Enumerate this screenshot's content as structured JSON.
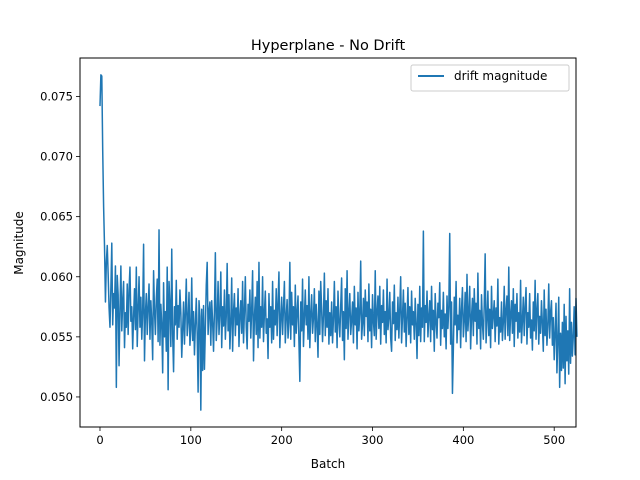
{
  "chart_data": {
    "type": "line",
    "title": "Hyperplane - No Drift",
    "xlabel": "Batch",
    "ylabel": "Magnitude",
    "xlim": [
      -22,
      524
    ],
    "ylim": [
      0.0475,
      0.0782
    ],
    "xticks": [
      0,
      100,
      200,
      300,
      400,
      500
    ],
    "yticks": [
      0.05,
      0.055,
      0.06,
      0.065,
      0.07,
      0.075
    ],
    "ytick_labels": [
      "0.050",
      "0.055",
      "0.060",
      "0.065",
      "0.070",
      "0.075"
    ],
    "grid": false,
    "legend_position": "top-right",
    "series": [
      {
        "name": "drift magnitude",
        "color": "#1f77b4",
        "x_start": 0,
        "x_step": 1,
        "values": [
          0.0742,
          0.0768,
          0.0767,
          0.0705,
          0.0658,
          0.0625,
          0.0579,
          0.0612,
          0.0626,
          0.0602,
          0.0574,
          0.0558,
          0.0591,
          0.0628,
          0.056,
          0.0586,
          0.0574,
          0.0609,
          0.0508,
          0.0601,
          0.0585,
          0.0526,
          0.0573,
          0.0609,
          0.0555,
          0.058,
          0.0596,
          0.0541,
          0.057,
          0.0558,
          0.0594,
          0.0552,
          0.0589,
          0.0608,
          0.0563,
          0.0575,
          0.054,
          0.0567,
          0.059,
          0.0556,
          0.0608,
          0.0542,
          0.0573,
          0.06,
          0.0558,
          0.0583,
          0.0548,
          0.0571,
          0.0627,
          0.053,
          0.0569,
          0.0586,
          0.0552,
          0.0575,
          0.0594,
          0.0548,
          0.058,
          0.0562,
          0.0531,
          0.0605,
          0.0572,
          0.0552,
          0.0582,
          0.0598,
          0.0546,
          0.0639,
          0.0543,
          0.0577,
          0.056,
          0.052,
          0.0595,
          0.055,
          0.0571,
          0.0538,
          0.0608,
          0.0506,
          0.0596,
          0.0577,
          0.0542,
          0.0623,
          0.0552,
          0.0521,
          0.0575,
          0.056,
          0.0597,
          0.0548,
          0.0576,
          0.0558,
          0.0589,
          0.057,
          0.0533,
          0.0556,
          0.0579,
          0.0544,
          0.057,
          0.0598,
          0.0551,
          0.0563,
          0.0587,
          0.0543,
          0.0556,
          0.0599,
          0.0547,
          0.0571,
          0.0535,
          0.056,
          0.0582,
          0.0553,
          0.0504,
          0.058,
          0.0567,
          0.0489,
          0.0573,
          0.0522,
          0.0576,
          0.0523,
          0.0557,
          0.0593,
          0.0612,
          0.0552,
          0.0571,
          0.0579,
          0.0543,
          0.058,
          0.0562,
          0.0538,
          0.0572,
          0.062,
          0.0547,
          0.0564,
          0.0596,
          0.0552,
          0.0569,
          0.0604,
          0.0541,
          0.0575,
          0.0559,
          0.0589,
          0.0548,
          0.0567,
          0.0611,
          0.0555,
          0.0585,
          0.054,
          0.0562,
          0.0599,
          0.0538,
          0.0571,
          0.0586,
          0.0551,
          0.0574,
          0.056,
          0.059,
          0.0542,
          0.0567,
          0.058,
          0.0553,
          0.0596,
          0.0545,
          0.0571,
          0.06,
          0.0558,
          0.054,
          0.0577,
          0.0563,
          0.0589,
          0.0549,
          0.0573,
          0.0605,
          0.053,
          0.0566,
          0.0583,
          0.0552,
          0.0596,
          0.0541,
          0.0612,
          0.0549,
          0.0575,
          0.0558,
          0.06,
          0.0546,
          0.057,
          0.0588,
          0.0553,
          0.0565,
          0.0532,
          0.0586,
          0.0558,
          0.0575,
          0.0545,
          0.0596,
          0.0548,
          0.0572,
          0.056,
          0.059,
          0.0551,
          0.0578,
          0.0604,
          0.0541,
          0.0565,
          0.0583,
          0.0552,
          0.0574,
          0.0596,
          0.0545,
          0.0567,
          0.0581,
          0.0549,
          0.0562,
          0.0612,
          0.0548,
          0.0587,
          0.056,
          0.0575,
          0.0542,
          0.0593,
          0.0553,
          0.057,
          0.0584,
          0.0546,
          0.0513,
          0.0579,
          0.0555,
          0.0598,
          0.0542,
          0.0566,
          0.0589,
          0.056,
          0.0576,
          0.0548,
          0.06,
          0.0541,
          0.0569,
          0.0585,
          0.0553,
          0.0566,
          0.059,
          0.0546,
          0.0577,
          0.056,
          0.0533,
          0.0588,
          0.0552,
          0.0596,
          0.0573,
          0.0546,
          0.0568,
          0.0603,
          0.0551,
          0.058,
          0.0558,
          0.059,
          0.0544,
          0.057,
          0.0551,
          0.0579,
          0.0545,
          0.0565,
          0.0596,
          0.0554,
          0.0575,
          0.0541,
          0.0588,
          0.0563,
          0.055,
          0.0576,
          0.0599,
          0.0547,
          0.0571,
          0.0531,
          0.059,
          0.0557,
          0.0605,
          0.0548,
          0.057,
          0.0586,
          0.0552,
          0.0564,
          0.0579,
          0.0545,
          0.0592,
          0.056,
          0.0574,
          0.054,
          0.0587,
          0.0555,
          0.0569,
          0.0613,
          0.0548,
          0.0561,
          0.0582,
          0.0551,
          0.0589,
          0.0567,
          0.0579,
          0.0546,
          0.0594,
          0.0555,
          0.0573,
          0.0541,
          0.0585,
          0.0563,
          0.0551,
          0.0605,
          0.0548,
          0.057,
          0.0584,
          0.0557,
          0.0592,
          0.0544,
          0.0576,
          0.0562,
          0.0589,
          0.0552,
          0.0571,
          0.0545,
          0.0598,
          0.0556,
          0.0566,
          0.0587,
          0.0549,
          0.0538,
          0.0579,
          0.0561,
          0.0593,
          0.0547,
          0.057,
          0.0556,
          0.0583,
          0.0549,
          0.0573,
          0.06,
          0.0545,
          0.0567,
          0.0589,
          0.0554,
          0.0578,
          0.0542,
          0.0566,
          0.0591,
          0.0552,
          0.0575,
          0.0545,
          0.0588,
          0.056,
          0.0571,
          0.0548,
          0.0582,
          0.0561,
          0.0532,
          0.0577,
          0.0551,
          0.0592,
          0.0546,
          0.0574,
          0.0558,
          0.0638,
          0.0546,
          0.0576,
          0.0562,
          0.0588,
          0.055,
          0.0567,
          0.058,
          0.0546,
          0.0592,
          0.0556,
          0.0572,
          0.0538,
          0.0586,
          0.0562,
          0.0549,
          0.0578,
          0.0566,
          0.0595,
          0.0543,
          0.0572,
          0.0557,
          0.0587,
          0.055,
          0.0569,
          0.054,
          0.0584,
          0.0557,
          0.0575,
          0.0636,
          0.0544,
          0.0579,
          0.0503,
          0.054,
          0.0583,
          0.056,
          0.0596,
          0.0545,
          0.0568,
          0.0556,
          0.0582,
          0.0541,
          0.0573,
          0.0591,
          0.055,
          0.0563,
          0.0587,
          0.0546,
          0.0602,
          0.0555,
          0.057,
          0.0592,
          0.054,
          0.0567,
          0.0582,
          0.0551,
          0.059,
          0.0563,
          0.0578,
          0.0544,
          0.0603,
          0.0557,
          0.0572,
          0.054,
          0.0585,
          0.0561,
          0.0548,
          0.0577,
          0.0619,
          0.0545,
          0.0564,
          0.0588,
          0.0551,
          0.0573,
          0.0541,
          0.0592,
          0.0557,
          0.0568,
          0.058,
          0.0546,
          0.0574,
          0.0559,
          0.0598,
          0.0544,
          0.0566,
          0.0554,
          0.0579,
          0.0547,
          0.0562,
          0.0592,
          0.0548,
          0.0573,
          0.0584,
          0.0551,
          0.0608,
          0.0547,
          0.0568,
          0.058,
          0.0553,
          0.059,
          0.0542,
          0.0577,
          0.0563,
          0.0586,
          0.0549,
          0.057,
          0.0554,
          0.0597,
          0.0545,
          0.0563,
          0.0583,
          0.0551,
          0.0575,
          0.0591,
          0.0544,
          0.057,
          0.0558,
          0.0586,
          0.0549,
          0.0564,
          0.0539,
          0.0579,
          0.0555,
          0.0597,
          0.0548,
          0.0572,
          0.0586,
          0.0544,
          0.0567,
          0.0553,
          0.058,
          0.0561,
          0.0538,
          0.0589,
          0.0551,
          0.0573,
          0.0543,
          0.056,
          0.0594,
          0.0549,
          0.057,
          0.058,
          0.0543,
          0.0566,
          0.0531,
          0.0553,
          0.0578,
          0.052,
          0.0547,
          0.0583,
          0.0508,
          0.0553,
          0.0522,
          0.0562,
          0.0524,
          0.0577,
          0.0511,
          0.0567,
          0.053,
          0.0555,
          0.0519,
          0.059,
          0.0528,
          0.0562,
          0.0534,
          0.055,
          0.0575,
          0.0535,
          0.0582,
          0.055
        ]
      }
    ]
  }
}
